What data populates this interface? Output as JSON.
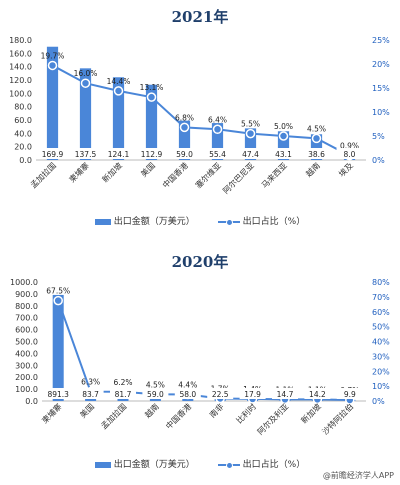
{
  "footer": {
    "source": "@前瞻经济学人APP"
  },
  "chart_data": [
    {
      "type": "bar",
      "title": "2021年",
      "categories": [
        "孟加拉国",
        "柬埔寨",
        "新加坡",
        "美国",
        "中国香港",
        "塞尔维亚",
        "阿尔巴尼亚",
        "马来西亚",
        "越南",
        "埃及"
      ],
      "series": [
        {
          "name": "出口金额（万美元）",
          "type": "bar",
          "axis": "left",
          "values": [
            169.9,
            137.5,
            124.1,
            112.9,
            59.0,
            55.4,
            47.4,
            43.1,
            38.6,
            8.0
          ],
          "labels": [
            "169.9",
            "137.5",
            "124.1",
            "112.9",
            "59.0",
            "55.4",
            "47.4",
            "43.1",
            "38.6",
            "8.0"
          ]
        },
        {
          "name": "出口占比（%）",
          "type": "line",
          "axis": "right",
          "values": [
            19.7,
            16.0,
            14.4,
            13.1,
            6.8,
            6.4,
            5.5,
            5.0,
            4.5,
            0.9
          ],
          "labels": [
            "19.7%",
            "16.0%",
            "14.4%",
            "13.1%",
            "6.8%",
            "6.4%",
            "5.5%",
            "5.0%",
            "4.5%",
            "0.9%"
          ]
        }
      ],
      "ylim": [
        0,
        180
      ],
      "yticks": [
        "0.0",
        "20.0",
        "40.0",
        "60.0",
        "80.0",
        "100.0",
        "120.0",
        "140.0",
        "160.0",
        "180.0"
      ],
      "y2lim": [
        0,
        25
      ],
      "y2ticks": [
        "0%",
        "5%",
        "10%",
        "15%",
        "20%",
        "25%"
      ],
      "legend": "bottom",
      "colors": {
        "bar": "#4a86d8",
        "line": "#4a86d8"
      }
    },
    {
      "type": "bar",
      "title": "2020年",
      "categories": [
        "柬埔寨",
        "美国",
        "孟加拉国",
        "越南",
        "中国香港",
        "南非",
        "比利时",
        "阿尔及利亚",
        "新加坡",
        "沙特阿拉伯"
      ],
      "series": [
        {
          "name": "出口金额（万美元）",
          "type": "bar",
          "axis": "left",
          "values": [
            891.3,
            83.7,
            81.7,
            59.0,
            58.0,
            22.5,
            17.9,
            14.7,
            14.2,
            9.9
          ],
          "labels": [
            "891.3",
            "83.7",
            "81.7",
            "59.0",
            "58.0",
            "22.5",
            "17.9",
            "14.7",
            "14.2",
            "9.9"
          ]
        },
        {
          "name": "出口占比（%）",
          "type": "line",
          "axis": "right",
          "values": [
            67.5,
            6.3,
            6.2,
            4.5,
            4.4,
            1.7,
            1.4,
            1.1,
            1.1,
            0.7
          ],
          "labels": [
            "67.5%",
            "6.3%",
            "6.2%",
            "4.5%",
            "4.4%",
            "1.7%",
            "1.4%",
            "1.1%",
            "1.1%",
            "0.7%"
          ]
        }
      ],
      "ylim": [
        0,
        1000
      ],
      "yticks": [
        "0.0",
        "100.0",
        "200.0",
        "300.0",
        "400.0",
        "500.0",
        "600.0",
        "700.0",
        "800.0",
        "900.0",
        "1000.0"
      ],
      "y2lim": [
        0,
        80
      ],
      "y2ticks": [
        "0%",
        "10%",
        "20%",
        "30%",
        "40%",
        "50%",
        "60%",
        "70%",
        "80%"
      ],
      "legend": "bottom",
      "colors": {
        "bar": "#4a86d8",
        "line": "#4a86d8"
      }
    }
  ]
}
